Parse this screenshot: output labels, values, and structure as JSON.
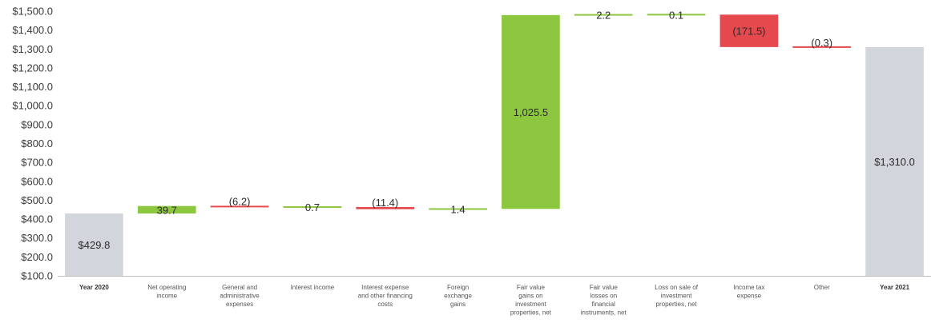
{
  "chart_data": {
    "type": "waterfall",
    "ylim": [
      100,
      1500
    ],
    "yticks": [
      {
        "value": 1500,
        "label": "$1,500.0"
      },
      {
        "value": 1400,
        "label": "$1,400.0"
      },
      {
        "value": 1300,
        "label": "$1,300.0"
      },
      {
        "value": 1200,
        "label": "$1,200.0"
      },
      {
        "value": 1100,
        "label": "$1,100.0"
      },
      {
        "value": 1000,
        "label": "$1,000.0"
      },
      {
        "value": 900,
        "label": "$900.0"
      },
      {
        "value": 800,
        "label": "$800.0"
      },
      {
        "value": 700,
        "label": "$700.0"
      },
      {
        "value": 600,
        "label": "$600.0"
      },
      {
        "value": 500,
        "label": "$500.0"
      },
      {
        "value": 400,
        "label": "$400.0"
      },
      {
        "value": 300,
        "label": "$300.0"
      },
      {
        "value": 200,
        "label": "$200.0"
      },
      {
        "value": 100,
        "label": "$100.0"
      }
    ],
    "bars": [
      {
        "category": [
          "Year 2020"
        ],
        "kind": "total",
        "value": 429.8,
        "label": "$429.8"
      },
      {
        "category": [
          "Net operating",
          "income"
        ],
        "kind": "increase",
        "value": 39.7,
        "label": "39.7"
      },
      {
        "category": [
          "General and",
          "administrative",
          "expenses"
        ],
        "kind": "decrease",
        "value": -6.2,
        "label": "(6.2)"
      },
      {
        "category": [
          "Interest income"
        ],
        "kind": "increase",
        "value": 0.7,
        "label": "0.7"
      },
      {
        "category": [
          "Interest expense",
          "and other financing",
          "costs"
        ],
        "kind": "decrease",
        "value": -11.4,
        "label": "(11.4)"
      },
      {
        "category": [
          "Foreign",
          "exchange",
          "gains"
        ],
        "kind": "increase",
        "value": 1.4,
        "label": "1.4"
      },
      {
        "category": [
          "Fair value",
          "gains on",
          "investment",
          "properties, net"
        ],
        "kind": "increase",
        "value": 1025.5,
        "label": "1,025.5"
      },
      {
        "category": [
          "Fair value",
          "losses on",
          "financial",
          "instruments, net"
        ],
        "kind": "increase",
        "value": 2.2,
        "label": "2.2"
      },
      {
        "category": [
          "Loss on sale of",
          "investment",
          "properties, net"
        ],
        "kind": "increase",
        "value": 0.1,
        "label": "0.1"
      },
      {
        "category": [
          "Income tax",
          "expense"
        ],
        "kind": "decrease",
        "value": -171.5,
        "label": "(171.5)"
      },
      {
        "category": [
          "Other"
        ],
        "kind": "decrease",
        "value": -0.3,
        "label": "(0.3)"
      },
      {
        "category": [
          "Year 2021"
        ],
        "kind": "total",
        "value": 1310.0,
        "label": "$1,310.0"
      }
    ],
    "colors": {
      "total": "#d3d5dc",
      "increase": "#8dc63f",
      "decrease": "#e5484d",
      "axis": "#bdbdbd"
    }
  }
}
